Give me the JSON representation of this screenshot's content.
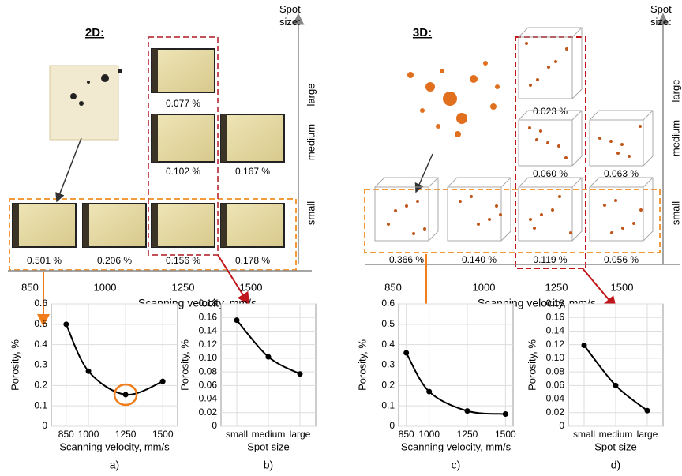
{
  "figure": {
    "panel_2d": {
      "title": "2D:",
      "spot_size_label": "Spot size:",
      "rows": [
        "large",
        "medium",
        "small"
      ],
      "x_ticks": [
        "850",
        "1000",
        "1250",
        "1500"
      ],
      "x_axis_label": "Scanning velocity,  mm/s",
      "samples": [
        "0.077 %",
        "0.102 %",
        "0.167 %",
        "0.501 %",
        "0.206 %",
        "0.156 %",
        "0.178 %"
      ]
    },
    "panel_3d": {
      "title": "3D:",
      "spot_size_label": "Spot size:",
      "rows": [
        "large",
        "medium",
        "small"
      ],
      "x_ticks": [
        "850",
        "1000",
        "1250",
        "1500"
      ],
      "x_axis_label": "Scanning velocity,  mm/s",
      "samples": [
        "0.023 %",
        "0.060 %",
        "0.063 %",
        "0.366 %",
        "0.140 %",
        "0.119 %",
        "0.056 %"
      ]
    }
  },
  "chart_data": [
    {
      "type": "line",
      "label": "a)",
      "x": [
        850,
        1000,
        1250,
        1500
      ],
      "values": [
        0.5,
        0.27,
        0.155,
        0.22
      ],
      "color": "#000000",
      "xlim": [
        750,
        1600
      ],
      "xticks": [
        850,
        1000,
        1250,
        1500
      ],
      "ylim": [
        0,
        0.6
      ],
      "yticks": [
        0,
        0.1,
        0.2,
        0.3,
        0.4,
        0.5,
        0.6
      ],
      "x_label": "Scanning velocity, mm/s",
      "y_label": "Porosity, %",
      "grid": true
    },
    {
      "type": "line",
      "label": "b)",
      "categories": [
        "small",
        "medium",
        "large"
      ],
      "values": [
        0.156,
        0.102,
        0.077
      ],
      "color": "#000000",
      "ylim": [
        0,
        0.18
      ],
      "yticks": [
        0,
        0.02,
        0.04,
        0.06,
        0.08,
        {
          "value": 0.1,
          "label": "0.10"
        },
        0.12,
        0.14,
        0.16,
        0.18
      ],
      "x_label": "Spot size",
      "y_label": "Porosity, %",
      "grid": true
    },
    {
      "type": "line",
      "label": "c)",
      "x": [
        850,
        1000,
        1250,
        1500
      ],
      "values": [
        0.36,
        0.17,
        0.075,
        0.06
      ],
      "color": "#000000",
      "xlim": [
        800,
        1550
      ],
      "xticks": [
        850,
        1000,
        1250,
        1500
      ],
      "ylim": [
        0,
        0.6
      ],
      "yticks": [
        0,
        0.1,
        0.2,
        0.3,
        0.4,
        0.5,
        0.6
      ],
      "x_label": "Scanning velocity, mm/s",
      "y_label": "Porosity, %",
      "grid": true
    },
    {
      "type": "line",
      "label": "d)",
      "categories": [
        "small",
        "medium",
        "large"
      ],
      "values": [
        0.119,
        0.06,
        0.023
      ],
      "color": "#000000",
      "ylim": [
        0,
        0.18
      ],
      "yticks": [
        0,
        0.02,
        0.04,
        0.06,
        0.08,
        {
          "value": 0.1,
          "label": "0.10"
        },
        0.12,
        0.14,
        0.16,
        0.18
      ],
      "x_label": "Spot size",
      "y_label": "Porosity, %",
      "grid": true
    }
  ]
}
